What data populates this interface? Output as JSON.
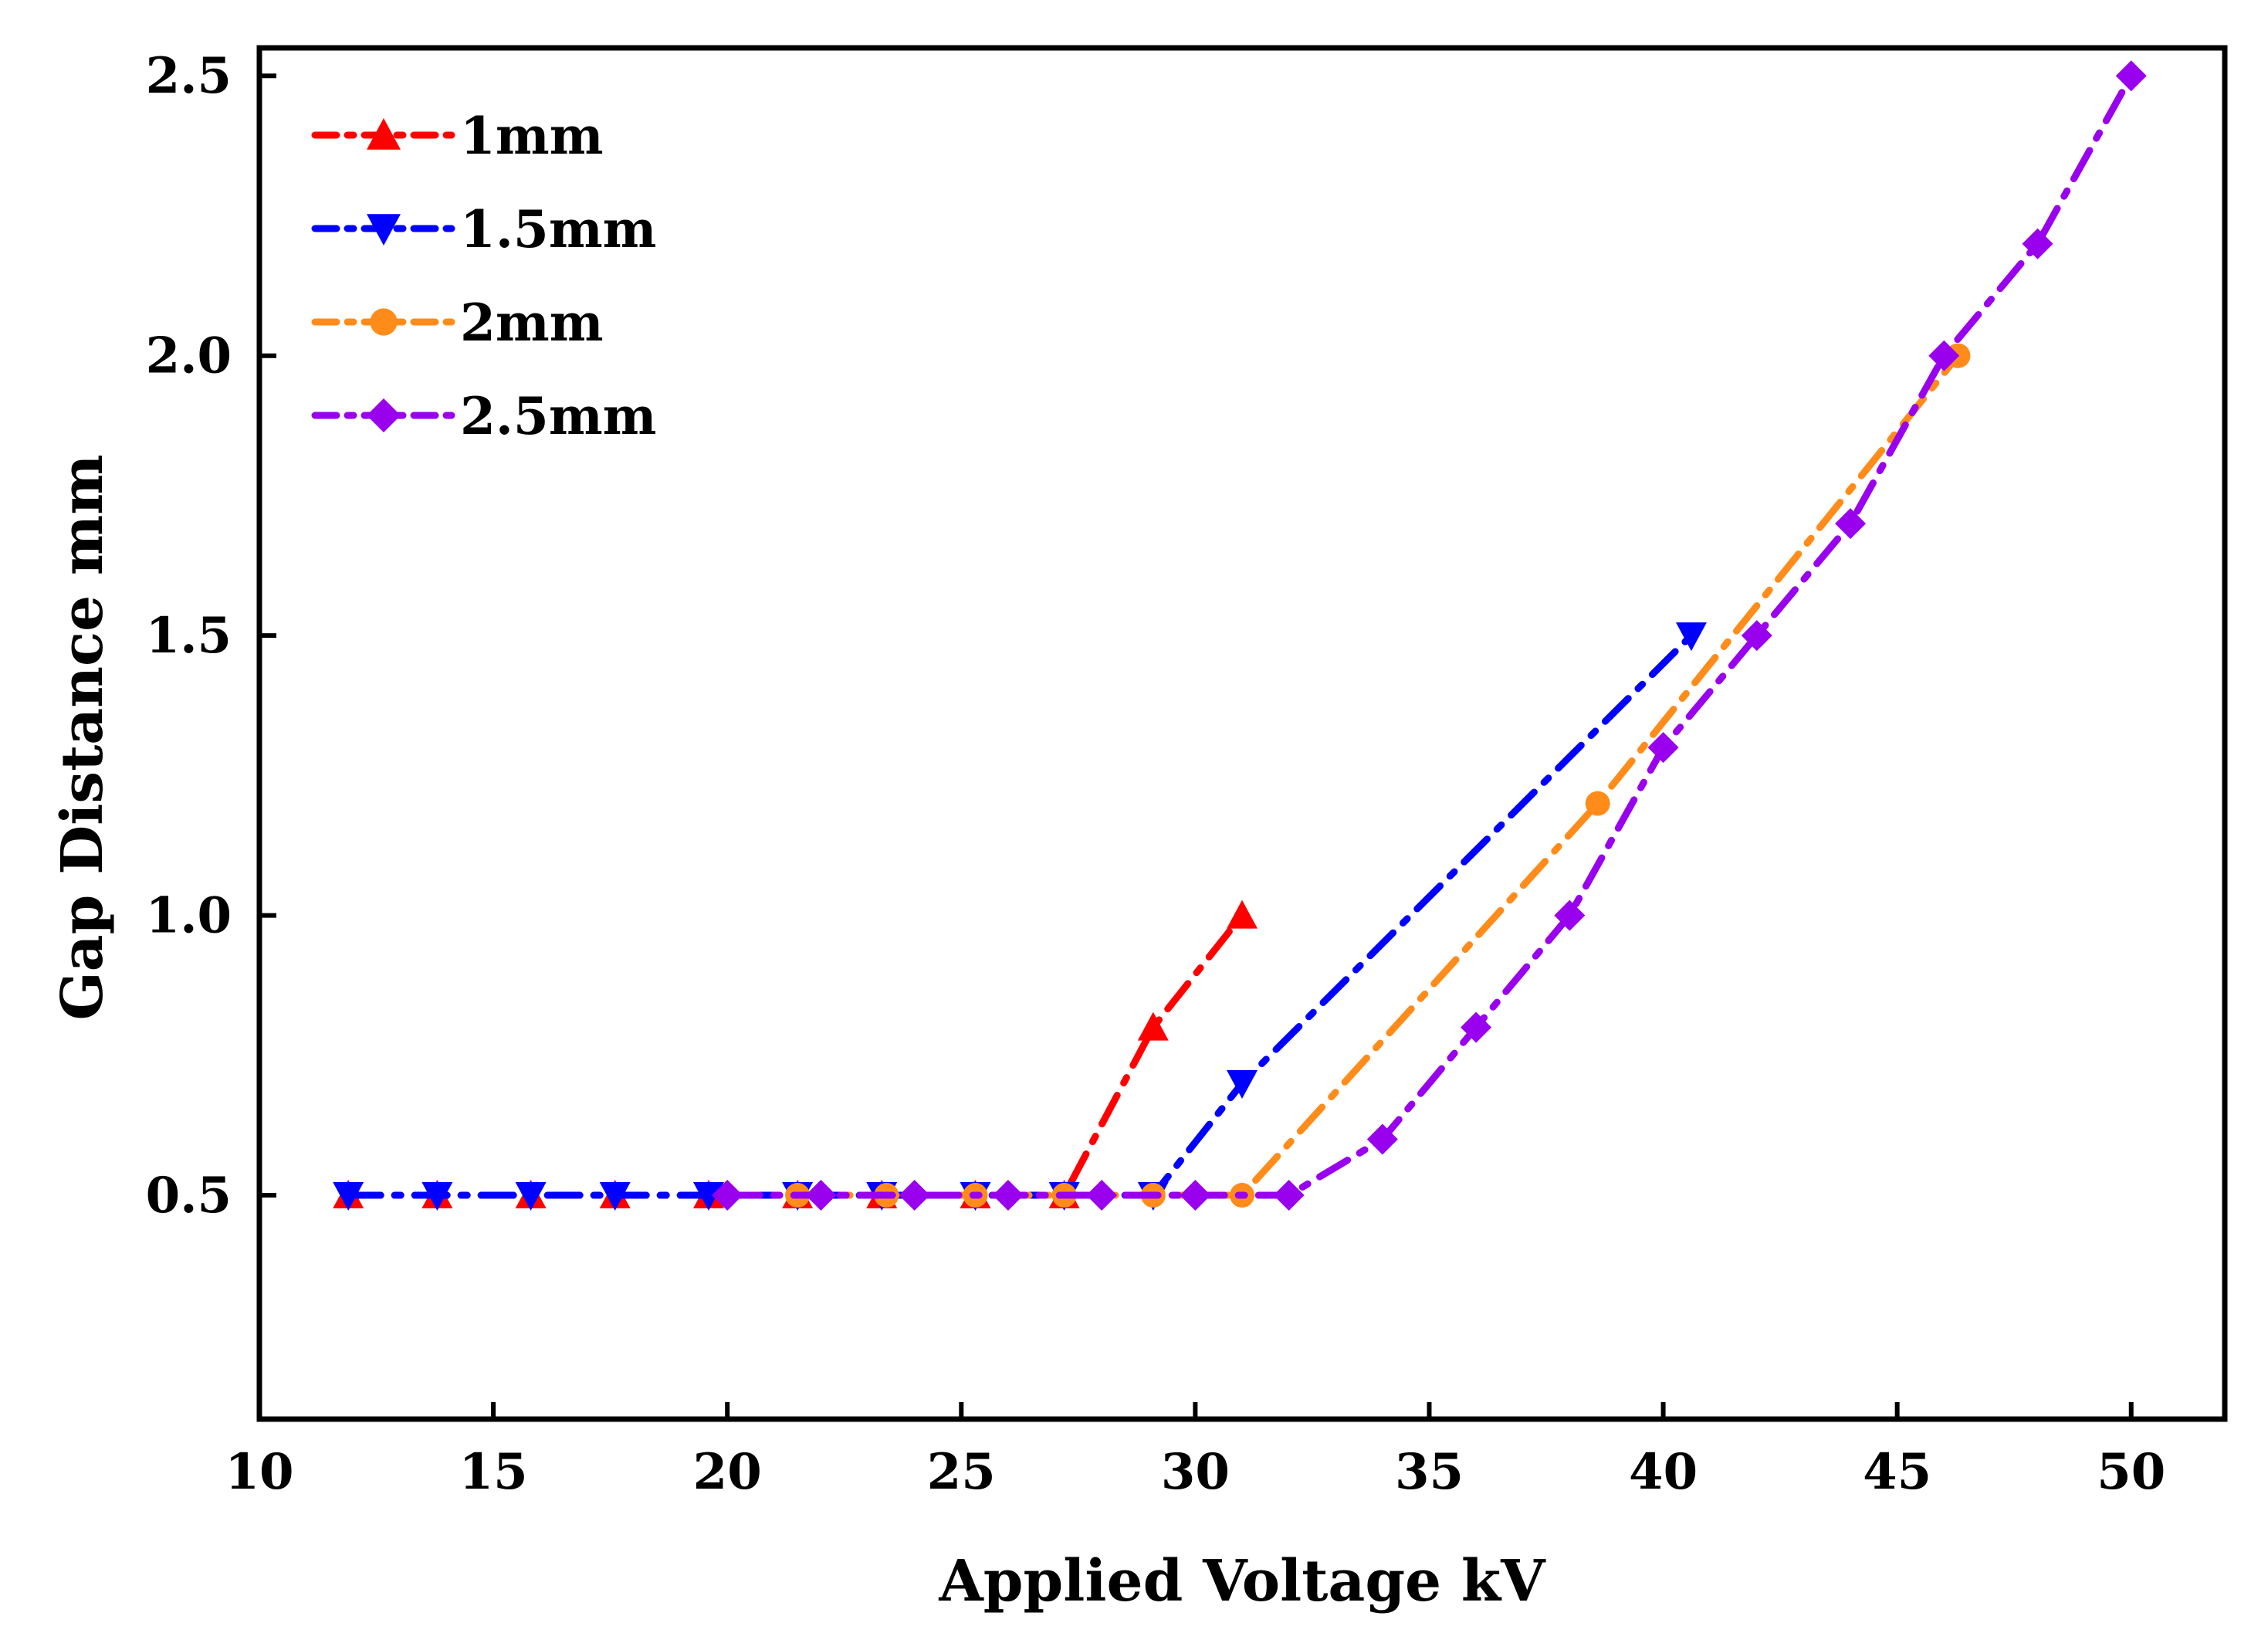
{
  "chart_data": {
    "type": "line",
    "xlabel": "Applied Voltage  kV",
    "ylabel": "Gap Distance  mm",
    "xlim": [
      10,
      52
    ],
    "ylim": [
      0.1,
      2.55
    ],
    "xticks": [
      10,
      15,
      20,
      25,
      30,
      35,
      40,
      45,
      50
    ],
    "yticks": [
      0.5,
      1.0,
      1.5,
      2.0,
      2.5
    ],
    "xtick_labels": [
      "10",
      "15",
      "20",
      "25",
      "30",
      "35",
      "40",
      "45",
      "50"
    ],
    "ytick_labels": [
      "0.5",
      "1.0",
      "1.5",
      "2.0",
      "2.5"
    ],
    "grid": false,
    "legend_position": "top-left",
    "series": [
      {
        "name": "1mm",
        "color": "#ff0000",
        "marker": "triangle-up",
        "x": [
          11.9,
          13.8,
          15.8,
          17.6,
          19.6,
          21.5,
          23.3,
          25.3,
          27.2,
          29.1,
          31.0
        ],
        "y": [
          0.5,
          0.5,
          0.5,
          0.5,
          0.5,
          0.5,
          0.5,
          0.5,
          0.5,
          0.8,
          1.0
        ]
      },
      {
        "name": "1.5mm",
        "color": "#0000ff",
        "marker": "triangle-down",
        "x": [
          11.9,
          13.8,
          15.8,
          17.6,
          19.6,
          21.5,
          23.3,
          25.3,
          27.2,
          29.1,
          31.0,
          40.6
        ],
        "y": [
          0.5,
          0.5,
          0.5,
          0.5,
          0.5,
          0.5,
          0.5,
          0.5,
          0.5,
          0.5,
          0.7,
          1.5
        ]
      },
      {
        "name": "2mm",
        "color": "#ff8c1a",
        "marker": "circle",
        "x": [
          21.5,
          23.4,
          25.3,
          27.2,
          29.1,
          31.0,
          38.6,
          46.3
        ],
        "y": [
          0.5,
          0.5,
          0.5,
          0.5,
          0.5,
          0.5,
          1.2,
          2.0
        ]
      },
      {
        "name": "2.5mm",
        "color": "#9900ee",
        "marker": "diamond",
        "x": [
          20,
          22,
          24,
          26,
          28,
          30,
          32,
          34,
          36,
          38,
          40,
          42,
          44,
          46,
          48,
          50
        ],
        "y": [
          0.5,
          0.5,
          0.5,
          0.5,
          0.5,
          0.5,
          0.5,
          0.6,
          0.8,
          1.0,
          1.3,
          1.5,
          1.7,
          2.0,
          2.2,
          2.5
        ]
      }
    ]
  }
}
